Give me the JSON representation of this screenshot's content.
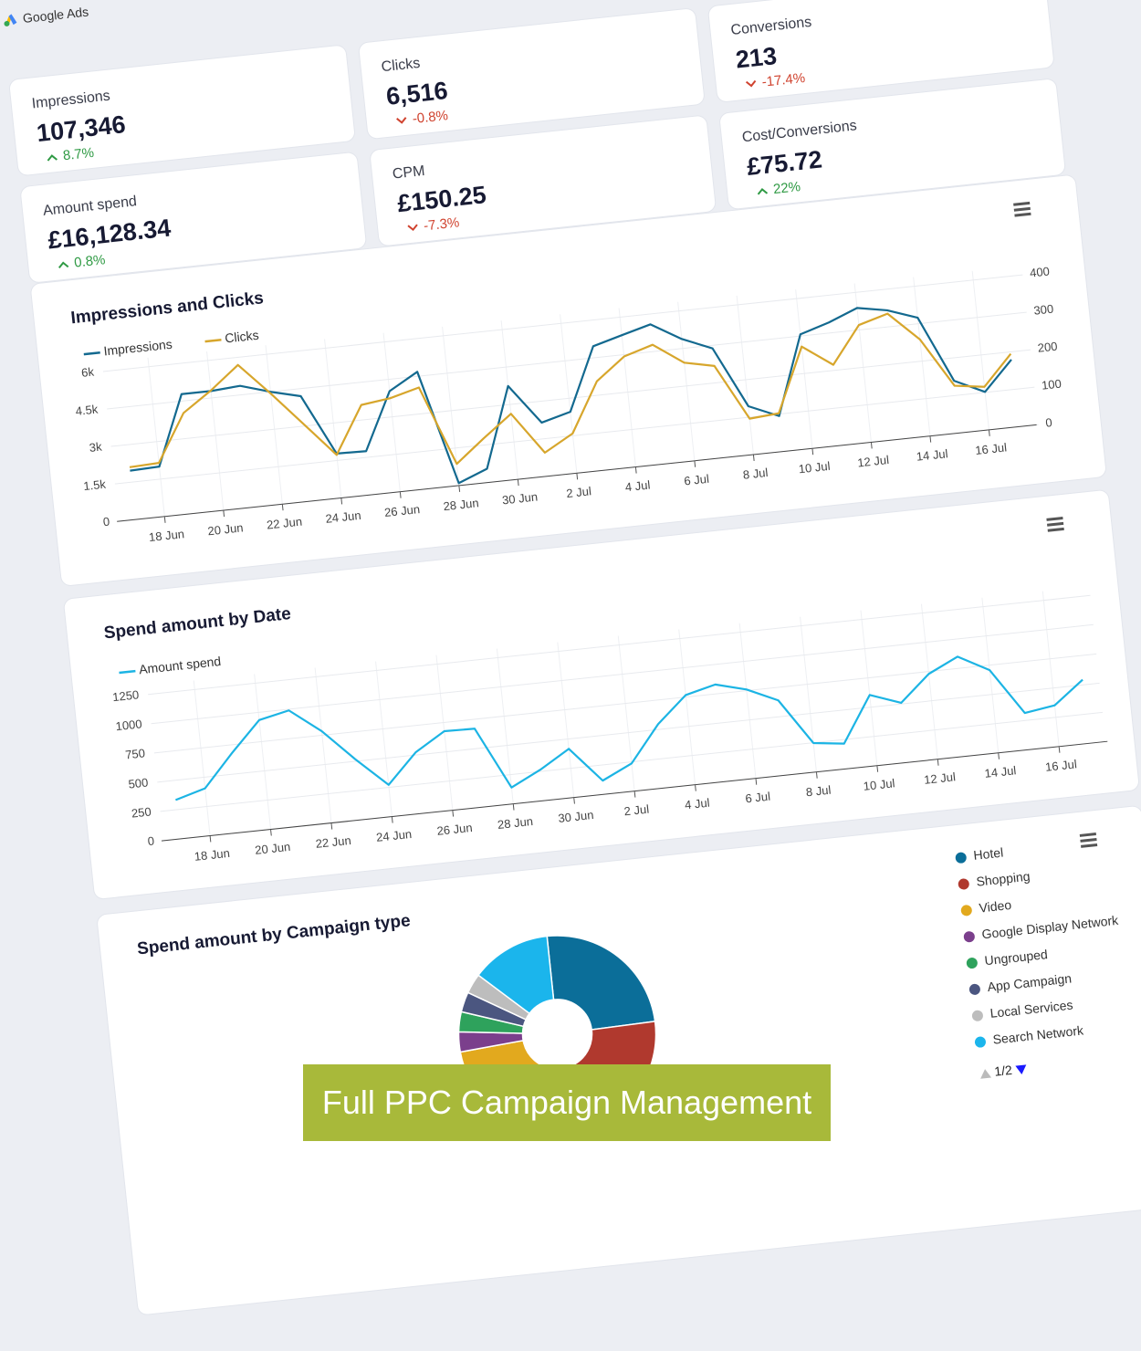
{
  "header": {
    "brand": "Google Ads"
  },
  "kpis": [
    {
      "label": "Impressions",
      "value": "107,346",
      "change": "8.7%",
      "trend": "up"
    },
    {
      "label": "Clicks",
      "value": "6,516",
      "change": "-0.8%",
      "trend": "down"
    },
    {
      "label": "Conversions",
      "value": "213",
      "change": "-17.4%",
      "trend": "down"
    },
    {
      "label": "Amount spend",
      "value": "£16,128.34",
      "change": "0.8%",
      "trend": "up"
    },
    {
      "label": "CPM",
      "value": "£150.25",
      "change": "-7.3%",
      "trend": "down"
    },
    {
      "label": "Cost/Conversions",
      "value": "£75.72",
      "change": "22%",
      "trend": "up"
    }
  ],
  "charts": [
    {
      "type": "line",
      "title": "Impressions and Clicks",
      "categories": [
        null,
        "18 Jun",
        null,
        "20 Jun",
        null,
        "22 Jun",
        null,
        "24 Jun",
        null,
        "26 Jun",
        null,
        "28 Jun",
        null,
        "30 Jun",
        null,
        "2 Jul",
        null,
        "4 Jul",
        null,
        "6 Jul",
        null,
        "8 Jul",
        null,
        "10 Jul",
        null,
        "12 Jul",
        null,
        "14 Jul",
        null,
        "16 Jul",
        null
      ],
      "series": [
        {
          "name": "Impressions",
          "color": "#13698f",
          "values": [
            1960,
            2000,
            4780,
            4780,
            4860,
            4500,
            4200,
            1780,
            1750,
            4030,
            4680,
            100,
            550,
            3740,
            2150,
            2460,
            4960,
            5280,
            5590,
            4880,
            4380,
            1940,
            1420,
            4570,
            4920,
            5380,
            5160,
            4740,
            2090,
            1520,
            2690
          ]
        },
        {
          "name": "Clicks",
          "color": "#d7a62c",
          "axis": "y2",
          "values": [
            140,
            143,
            268,
            320,
            380,
            295,
            205,
            115,
            240,
            250,
            270,
            58,
            118,
            175,
            63,
            106,
            237,
            295,
            318,
            262,
            245,
            96,
            102,
            272,
            215,
            313,
            335,
            258,
            126,
            115,
            195
          ]
        }
      ],
      "ylim": [
        0,
        6000
      ],
      "yticks": [
        0,
        {
          "value": 1500,
          "label": "1.5k"
        },
        {
          "value": 3000,
          "label": "3k"
        },
        {
          "value": 4500,
          "label": "4.5k"
        },
        {
          "value": 6000,
          "label": "6k"
        }
      ],
      "y2lim": [
        0,
        400
      ],
      "y2ticks": [
        0,
        100,
        200,
        300,
        400
      ],
      "grid": true,
      "legend": "top-left"
    },
    {
      "type": "line",
      "title": "Spend amount by Date",
      "categories": [
        null,
        "18 Jun",
        null,
        "20 Jun",
        null,
        "22 Jun",
        null,
        "24 Jun",
        null,
        "26 Jun",
        null,
        "28 Jun",
        null,
        "30 Jun",
        null,
        "2 Jul",
        null,
        "4 Jul",
        null,
        "6 Jul",
        null,
        "8 Jul",
        null,
        "10 Jul",
        null,
        "12 Jul",
        null,
        "14 Jul",
        null,
        "16 Jul",
        null
      ],
      "series": [
        {
          "name": "Amount spend",
          "color": "#1cb4e4",
          "values": [
            333,
            405,
            680,
            935,
            990,
            786,
            518,
            272,
            524,
            676,
            670,
            140,
            265,
            416,
            117,
            237,
            546,
            767,
            830,
            760,
            640,
            248,
            215,
            604,
            509,
            730,
            850,
            707,
            314,
            352,
            544
          ]
        }
      ],
      "ylim": [
        0,
        1250
      ],
      "yticks": [
        0,
        250,
        500,
        750,
        1000,
        1250
      ],
      "grid": true,
      "legend": "top-left"
    },
    {
      "type": "donut",
      "title": "Spend amount by Campaign type",
      "categories": [
        "Hotel",
        "Shopping",
        "Video",
        "Google Display Network",
        "Ungrouped",
        "App Campaign",
        "Local Services",
        "Search Network"
      ],
      "values": [
        15,
        17,
        13,
        2,
        2,
        2,
        2,
        8
      ],
      "colors": [
        "#0b6e99",
        "#b0392e",
        "#e2a91e",
        "#7b3f8c",
        "#2ea25c",
        "#4b5680",
        "#bdbdbd",
        "#1bb5ec"
      ],
      "legend": "right",
      "legend_page": "1/2"
    }
  ],
  "banner": {
    "text": "Full PPC Campaign Management"
  }
}
